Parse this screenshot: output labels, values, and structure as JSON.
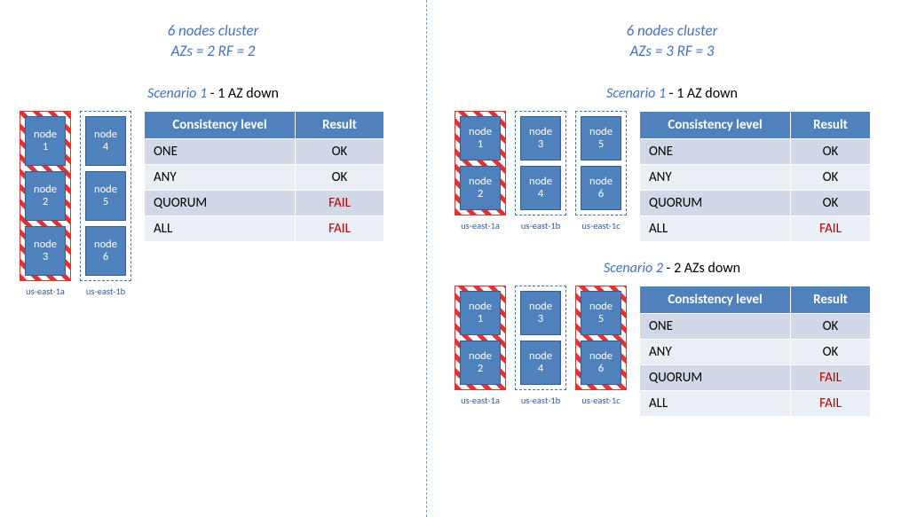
{
  "colors": {
    "accent_blue": "#4472c4",
    "node_fill": "#4f81bd",
    "node_border": "#385d8a",
    "stripe_red": "#e83030",
    "fail_text": "#c00000",
    "az_border_blue": "#3b78b5",
    "az_label_color": "#2e5daa",
    "row_odd": "#d1d9e8",
    "row_even": "#eaeef5"
  },
  "table_headers": {
    "col1": "Consistency level",
    "col2": "Result"
  },
  "left": {
    "title1": "6 nodes cluster",
    "title2": "AZs = 2    RF = 2",
    "scenario1": {
      "label_em": "Scenario 1",
      "label_rest": " - 1 AZ down",
      "azs": [
        {
          "name": "us-east-1a",
          "down": true,
          "nodes": [
            "node 1",
            "node 2",
            "node 3"
          ]
        },
        {
          "name": "us-east-1b",
          "down": false,
          "nodes": [
            "node 4",
            "node 5",
            "node 6"
          ]
        }
      ],
      "results": [
        {
          "level": "ONE",
          "result": "OK",
          "fail": false
        },
        {
          "level": "ANY",
          "result": "OK",
          "fail": false
        },
        {
          "level": "QUORUM",
          "result": "FAIL",
          "fail": true
        },
        {
          "level": "ALL",
          "result": "FAIL",
          "fail": true
        }
      ]
    }
  },
  "right": {
    "title1": "6 nodes cluster",
    "title2": "AZs = 3    RF = 3",
    "scenario1": {
      "label_em": "Scenario 1",
      "label_rest": " - 1 AZ down",
      "azs": [
        {
          "name": "us-east-1a",
          "down": true,
          "nodes": [
            "node 1",
            "node 2"
          ]
        },
        {
          "name": "us-east-1b",
          "down": false,
          "nodes": [
            "node 3",
            "node 4"
          ]
        },
        {
          "name": "us-east-1c",
          "down": false,
          "nodes": [
            "node 5",
            "node 6"
          ]
        }
      ],
      "results": [
        {
          "level": "ONE",
          "result": "OK",
          "fail": false
        },
        {
          "level": "ANY",
          "result": "OK",
          "fail": false
        },
        {
          "level": "QUORUM",
          "result": "OK",
          "fail": false
        },
        {
          "level": "ALL",
          "result": "FAIL",
          "fail": true
        }
      ]
    },
    "scenario2": {
      "label_em": "Scenario 2",
      "label_rest": " - 2 AZs down",
      "azs": [
        {
          "name": "us-east-1a",
          "down": true,
          "nodes": [
            "node 1",
            "node 2"
          ]
        },
        {
          "name": "us-east-1b",
          "down": false,
          "nodes": [
            "node 3",
            "node 4"
          ]
        },
        {
          "name": "us-east-1c",
          "down": true,
          "nodes": [
            "node 5",
            "node 6"
          ]
        }
      ],
      "results": [
        {
          "level": "ONE",
          "result": "OK",
          "fail": false
        },
        {
          "level": "ANY",
          "result": "OK",
          "fail": false
        },
        {
          "level": "QUORUM",
          "result": "FAIL",
          "fail": true
        },
        {
          "level": "ALL",
          "result": "FAIL",
          "fail": true
        }
      ]
    }
  }
}
